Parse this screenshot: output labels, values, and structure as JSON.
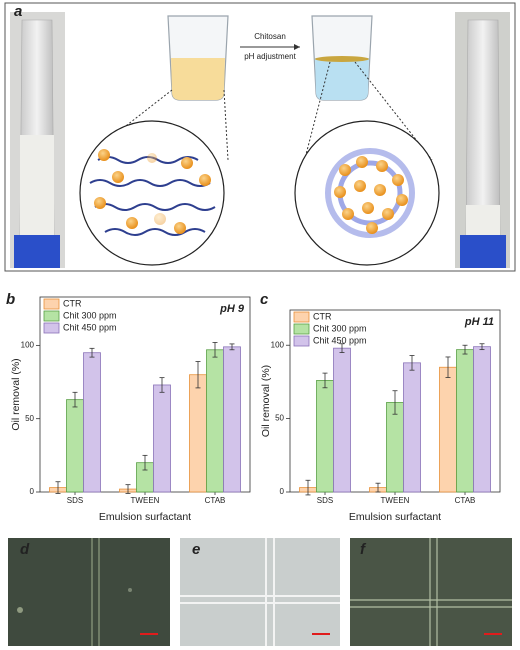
{
  "panel_labels": [
    "a",
    "b",
    "c",
    "d",
    "e",
    "f"
  ],
  "panel_a": {
    "arrow_top": "Chitosan",
    "arrow_bottom": "pH adjustment"
  },
  "chart_data": [
    {
      "type": "bar",
      "annotation": "pH 9",
      "x_label": "Emulsion surfactant",
      "y_label": "Oil removal (%)",
      "categories": [
        "SDS",
        "TWEEN",
        "CTAB"
      ],
      "ylim": [
        0,
        133
      ],
      "yticks": [
        0,
        50,
        100
      ],
      "legend": "upper left",
      "series": [
        {
          "name": "CTR",
          "color": "#fdd3ad",
          "edge": "#e8923a",
          "values": [
            3,
            2,
            80
          ],
          "errors": [
            4,
            3,
            9
          ]
        },
        {
          "name": "Chit 300 ppm",
          "color": "#b5e3a4",
          "edge": "#5aa046",
          "values": [
            63,
            20,
            97
          ],
          "errors": [
            5,
            5,
            5
          ]
        },
        {
          "name": "Chit 450 ppm",
          "color": "#d2c3ea",
          "edge": "#8a72b8",
          "values": [
            95,
            73,
            99
          ],
          "errors": [
            3,
            5,
            2
          ]
        }
      ]
    },
    {
      "type": "bar",
      "annotation": "pH 11",
      "x_label": "Emulsion surfactant",
      "y_label": "Oil removal (%)",
      "categories": [
        "SDS",
        "TWEEN",
        "CTAB"
      ],
      "ylim": [
        0,
        124
      ],
      "yticks": [
        0,
        50,
        100
      ],
      "legend": "upper left",
      "series": [
        {
          "name": "CTR",
          "color": "#fdd3ad",
          "edge": "#e8923a",
          "values": [
            3,
            3,
            85
          ],
          "errors": [
            5,
            3,
            7
          ]
        },
        {
          "name": "Chit 300 ppm",
          "color": "#b5e3a4",
          "edge": "#5aa046",
          "values": [
            76,
            61,
            97
          ],
          "errors": [
            5,
            8,
            3
          ]
        },
        {
          "name": "Chit 450 ppm",
          "color": "#d2c3ea",
          "edge": "#8a72b8",
          "values": [
            98,
            88,
            99
          ],
          "errors": [
            3,
            5,
            2
          ]
        }
      ]
    }
  ]
}
